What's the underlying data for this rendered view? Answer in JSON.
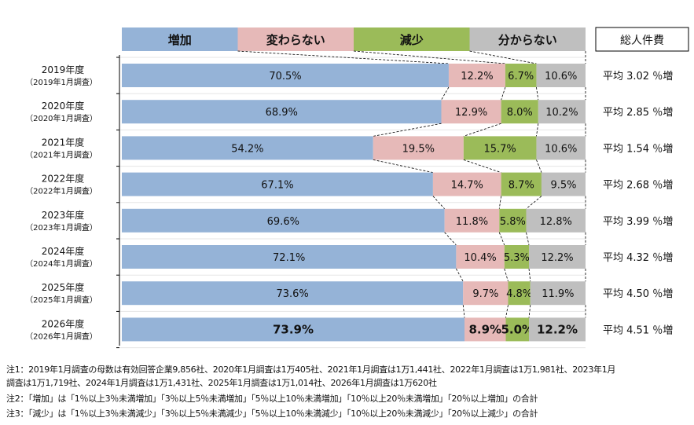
{
  "chart_data": {
    "type": "bar",
    "orientation": "horizontal-stacked-100",
    "legend": [
      "増加",
      "変わらない",
      "減少",
      "分からない"
    ],
    "legend_placement": "top",
    "colors": [
      "#95b3d7",
      "#e6b9b8",
      "#9bbb59",
      "#bfbfbf"
    ],
    "categories": [
      {
        "year": "2019年度",
        "survey": "（2019年1月調査）"
      },
      {
        "year": "2020年度",
        "survey": "（2020年1月調査）"
      },
      {
        "year": "2021年度",
        "survey": "（2021年1月調査）"
      },
      {
        "year": "2022年度",
        "survey": "（2022年1月調査）"
      },
      {
        "year": "2023年度",
        "survey": "（2023年1月調査）"
      },
      {
        "year": "2024年度",
        "survey": "（2024年1月調査）"
      },
      {
        "year": "2025年度",
        "survey": "（2025年1月調査）"
      },
      {
        "year": "2026年度",
        "survey": "（2026年1月調査）"
      }
    ],
    "series": [
      {
        "name": "増加",
        "values": [
          70.5,
          68.9,
          54.2,
          67.1,
          69.6,
          72.1,
          73.6,
          73.9
        ]
      },
      {
        "name": "変わらない",
        "values": [
          12.2,
          12.9,
          19.5,
          14.7,
          11.8,
          10.4,
          9.7,
          8.9
        ]
      },
      {
        "name": "減少",
        "values": [
          6.7,
          8.0,
          15.7,
          8.7,
          5.8,
          5.3,
          4.8,
          5.0
        ]
      },
      {
        "name": "分からない",
        "values": [
          10.6,
          10.2,
          10.6,
          9.5,
          12.8,
          12.2,
          11.9,
          12.2
        ]
      }
    ],
    "xlim": [
      0,
      100
    ],
    "unit": "%",
    "side_header": "総人件費",
    "side_labels": [
      "平均 3.02 ％増",
      "平均 2.85 ％増",
      "平均 1.54 ％増",
      "平均 2.68 ％増",
      "平均 3.99 ％増",
      "平均 4.32 ％増",
      "平均 4.50 ％増",
      "平均 4.51 ％増"
    ],
    "highlight_last_row": true
  },
  "notes": [
    "注1：2019年1月調査の母数は有効回答企業9,856社、2020年1月調査は1万405社、2021年1月調査は1万1,441社、2022年1月調査は1万1,981社、2023年1月",
    "調査は1万1,719社、2024年1月調査は1万1,431社、2025年1月調査は1万1,014社、2026年1月調査は1万620社",
    "注2：「増加」は「1％以上3％未満増加」「3％以上5％未満増加」「5％以上10％未満増加」「10％以上20％未満増加」「20％以上増加」の合計",
    "注3：「減少」は「1％以上3％未満減少」「3％以上5％未満減少」「5％以上10％未満減少」「10％以上20％未満減少」「20％以上減少」の合計"
  ]
}
